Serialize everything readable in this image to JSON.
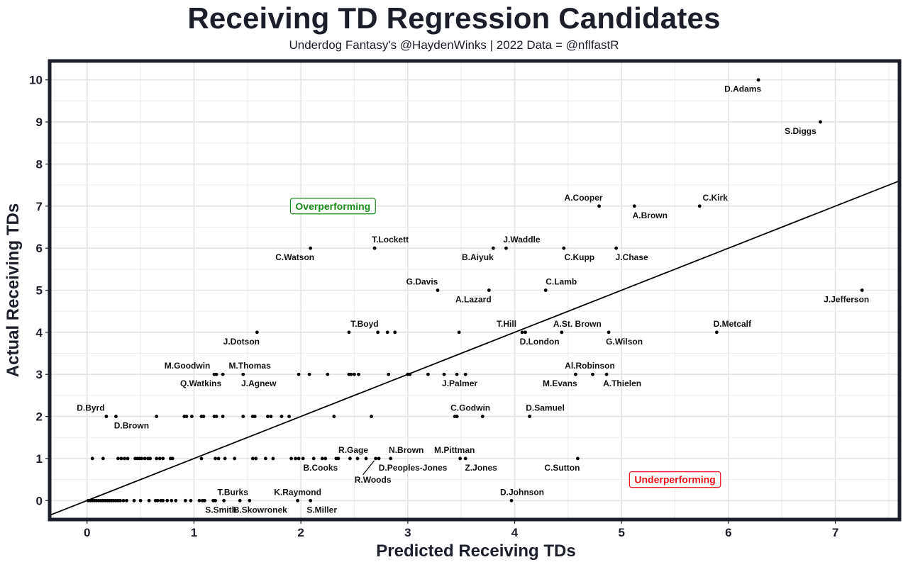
{
  "chart_data": {
    "type": "scatter",
    "title": "Receiving TD Regression Candidates",
    "subtitle": "Underdog Fantasy's @HaydenWinks | 2022 Data = @nflfastR",
    "xlabel": "Predicted Receiving TDs",
    "ylabel": "Actual Receiving TDs",
    "xlim": [
      -0.35,
      7.6
    ],
    "ylim": [
      -0.45,
      10.45
    ],
    "xticks": [
      0,
      1,
      2,
      3,
      4,
      5,
      6,
      7
    ],
    "yticks": [
      0,
      1,
      2,
      3,
      4,
      5,
      6,
      7,
      8,
      9,
      10
    ],
    "grid": true,
    "reference_line": {
      "type": "y=x",
      "label": ""
    },
    "annotations": [
      {
        "text": "Overperforming",
        "x": 2.3,
        "y": 7.0,
        "color": "#1a8a1a"
      },
      {
        "text": "Underperforming",
        "x": 5.5,
        "y": 0.5,
        "color": "#e8111b"
      }
    ],
    "labeled_points": [
      {
        "name": "D.Adams",
        "x": 6.28,
        "y": 10
      },
      {
        "name": "S.Diggs",
        "x": 6.86,
        "y": 9
      },
      {
        "name": "A.Cooper",
        "x": 4.79,
        "y": 7
      },
      {
        "name": "A.Brown",
        "x": 5.12,
        "y": 7
      },
      {
        "name": "C.Kirk",
        "x": 5.73,
        "y": 7
      },
      {
        "name": "C.Watson",
        "x": 2.09,
        "y": 6
      },
      {
        "name": "T.Lockett",
        "x": 2.69,
        "y": 6
      },
      {
        "name": "B.Aiyuk",
        "x": 3.8,
        "y": 6
      },
      {
        "name": "J.Waddle",
        "x": 3.92,
        "y": 6
      },
      {
        "name": "C.Kupp",
        "x": 4.46,
        "y": 6
      },
      {
        "name": "J.Chase",
        "x": 4.95,
        "y": 6
      },
      {
        "name": "G.Davis",
        "x": 3.28,
        "y": 5
      },
      {
        "name": "A.Lazard",
        "x": 3.76,
        "y": 5
      },
      {
        "name": "C.Lamb",
        "x": 4.29,
        "y": 5
      },
      {
        "name": "J.Jefferson",
        "x": 7.25,
        "y": 5
      },
      {
        "name": "J.Dotson",
        "x": 1.59,
        "y": 4
      },
      {
        "name": "T.Boyd",
        "x": 2.45,
        "y": 4
      },
      {
        "name": "T.Hill",
        "x": 4.07,
        "y": 4
      },
      {
        "name": "D.London",
        "x": 4.1,
        "y": 4
      },
      {
        "name": "A.St. Brown",
        "x": 4.44,
        "y": 4
      },
      {
        "name": "G.Wilson",
        "x": 4.88,
        "y": 4
      },
      {
        "name": "D.Metcalf",
        "x": 5.89,
        "y": 4
      },
      {
        "name": "M.Goodwin",
        "x": 1.19,
        "y": 3
      },
      {
        "name": "Q.Watkins",
        "x": 1.21,
        "y": 3
      },
      {
        "name": "M.Thomas",
        "x": 1.27,
        "y": 3
      },
      {
        "name": "J.Agnew",
        "x": 1.46,
        "y": 3
      },
      {
        "name": "J.Palmer",
        "x": 3.34,
        "y": 3
      },
      {
        "name": "M.Evans",
        "x": 4.57,
        "y": 3
      },
      {
        "name": "Al.Robinson",
        "x": 4.73,
        "y": 3
      },
      {
        "name": "A.Thielen",
        "x": 4.86,
        "y": 3
      },
      {
        "name": "D.Byrd",
        "x": 0.18,
        "y": 2
      },
      {
        "name": "D.Brown",
        "x": 0.27,
        "y": 2
      },
      {
        "name": "C.Godwin",
        "x": 3.44,
        "y": 2
      },
      {
        "name": "D.Samuel",
        "x": 4.14,
        "y": 2
      },
      {
        "name": "R.Gage",
        "x": 2.61,
        "y": 1
      },
      {
        "name": "B.Cooks",
        "x": 2.33,
        "y": 1
      },
      {
        "name": "R.Woods",
        "x": 2.7,
        "y": 1
      },
      {
        "name": "N.Brown",
        "x": 2.84,
        "y": 1
      },
      {
        "name": "D.Peoples-Jones",
        "x": 2.73,
        "y": 1
      },
      {
        "name": "M.Pittman",
        "x": 3.49,
        "y": 1
      },
      {
        "name": "Z.Jones",
        "x": 3.54,
        "y": 1
      },
      {
        "name": "C.Sutton",
        "x": 4.59,
        "y": 1
      },
      {
        "name": "T.Burks",
        "x": 1.43,
        "y": 0
      },
      {
        "name": "S.Smith",
        "x": 1.2,
        "y": 0
      },
      {
        "name": "B.Skowronek",
        "x": 1.52,
        "y": 0
      },
      {
        "name": "K.Raymond",
        "x": 1.97,
        "y": 0
      },
      {
        "name": "S.Miller",
        "x": 2.09,
        "y": 0
      },
      {
        "name": "D.Johnson",
        "x": 3.97,
        "y": 0
      }
    ],
    "unlabeled_points": [
      {
        "x": 0.65,
        "y": 2
      },
      {
        "x": 0.91,
        "y": 2
      },
      {
        "x": 0.93,
        "y": 2
      },
      {
        "x": 0.98,
        "y": 2
      },
      {
        "x": 1.07,
        "y": 2
      },
      {
        "x": 1.09,
        "y": 2
      },
      {
        "x": 1.19,
        "y": 2
      },
      {
        "x": 1.21,
        "y": 2
      },
      {
        "x": 1.27,
        "y": 2
      },
      {
        "x": 1.46,
        "y": 2
      },
      {
        "x": 1.55,
        "y": 2
      },
      {
        "x": 1.57,
        "y": 2
      },
      {
        "x": 1.69,
        "y": 2
      },
      {
        "x": 1.72,
        "y": 2
      },
      {
        "x": 1.82,
        "y": 2
      },
      {
        "x": 1.89,
        "y": 2
      },
      {
        "x": 2.31,
        "y": 2
      },
      {
        "x": 2.66,
        "y": 2
      },
      {
        "x": 3.46,
        "y": 2
      },
      {
        "x": 3.7,
        "y": 2
      },
      {
        "x": 1.98,
        "y": 3
      },
      {
        "x": 2.08,
        "y": 3
      },
      {
        "x": 2.25,
        "y": 3
      },
      {
        "x": 2.45,
        "y": 3
      },
      {
        "x": 2.47,
        "y": 3
      },
      {
        "x": 2.5,
        "y": 3
      },
      {
        "x": 2.54,
        "y": 3
      },
      {
        "x": 2.82,
        "y": 3
      },
      {
        "x": 3.0,
        "y": 3
      },
      {
        "x": 3.02,
        "y": 3
      },
      {
        "x": 3.19,
        "y": 3
      },
      {
        "x": 3.46,
        "y": 3
      },
      {
        "x": 3.54,
        "y": 3
      },
      {
        "x": 2.72,
        "y": 4
      },
      {
        "x": 2.81,
        "y": 4
      },
      {
        "x": 2.88,
        "y": 4
      },
      {
        "x": 3.48,
        "y": 4
      },
      {
        "x": 0.05,
        "y": 1
      },
      {
        "x": 0.15,
        "y": 1
      },
      {
        "x": 0.29,
        "y": 1
      },
      {
        "x": 0.32,
        "y": 1
      },
      {
        "x": 0.35,
        "y": 1
      },
      {
        "x": 0.38,
        "y": 1
      },
      {
        "x": 0.45,
        "y": 1
      },
      {
        "x": 0.47,
        "y": 1
      },
      {
        "x": 0.49,
        "y": 1
      },
      {
        "x": 0.51,
        "y": 1
      },
      {
        "x": 0.54,
        "y": 1
      },
      {
        "x": 0.57,
        "y": 1
      },
      {
        "x": 0.59,
        "y": 1
      },
      {
        "x": 0.65,
        "y": 1
      },
      {
        "x": 0.68,
        "y": 1
      },
      {
        "x": 0.71,
        "y": 1
      },
      {
        "x": 0.78,
        "y": 1
      },
      {
        "x": 0.8,
        "y": 1
      },
      {
        "x": 1.07,
        "y": 1
      },
      {
        "x": 1.2,
        "y": 1
      },
      {
        "x": 1.23,
        "y": 1
      },
      {
        "x": 1.29,
        "y": 1
      },
      {
        "x": 1.38,
        "y": 1
      },
      {
        "x": 1.55,
        "y": 1
      },
      {
        "x": 1.58,
        "y": 1
      },
      {
        "x": 1.67,
        "y": 1
      },
      {
        "x": 1.74,
        "y": 1
      },
      {
        "x": 1.91,
        "y": 1
      },
      {
        "x": 1.95,
        "y": 1
      },
      {
        "x": 1.98,
        "y": 1
      },
      {
        "x": 2.02,
        "y": 1
      },
      {
        "x": 2.12,
        "y": 1
      },
      {
        "x": 2.2,
        "y": 1
      },
      {
        "x": 2.23,
        "y": 1
      },
      {
        "x": 2.35,
        "y": 1
      },
      {
        "x": 2.46,
        "y": 1
      },
      {
        "x": 2.53,
        "y": 1
      },
      {
        "x": 0.01,
        "y": 0
      },
      {
        "x": 0.03,
        "y": 0
      },
      {
        "x": 0.05,
        "y": 0
      },
      {
        "x": 0.07,
        "y": 0
      },
      {
        "x": 0.09,
        "y": 0
      },
      {
        "x": 0.11,
        "y": 0
      },
      {
        "x": 0.13,
        "y": 0
      },
      {
        "x": 0.15,
        "y": 0
      },
      {
        "x": 0.17,
        "y": 0
      },
      {
        "x": 0.19,
        "y": 0
      },
      {
        "x": 0.21,
        "y": 0
      },
      {
        "x": 0.23,
        "y": 0
      },
      {
        "x": 0.25,
        "y": 0
      },
      {
        "x": 0.27,
        "y": 0
      },
      {
        "x": 0.29,
        "y": 0
      },
      {
        "x": 0.31,
        "y": 0
      },
      {
        "x": 0.34,
        "y": 0
      },
      {
        "x": 0.37,
        "y": 0
      },
      {
        "x": 0.44,
        "y": 0
      },
      {
        "x": 0.5,
        "y": 0
      },
      {
        "x": 0.58,
        "y": 0
      },
      {
        "x": 0.64,
        "y": 0
      },
      {
        "x": 0.66,
        "y": 0
      },
      {
        "x": 0.69,
        "y": 0
      },
      {
        "x": 0.71,
        "y": 0
      },
      {
        "x": 0.75,
        "y": 0
      },
      {
        "x": 0.79,
        "y": 0
      },
      {
        "x": 0.83,
        "y": 0
      },
      {
        "x": 0.92,
        "y": 0
      },
      {
        "x": 0.97,
        "y": 0
      },
      {
        "x": 1.05,
        "y": 0
      },
      {
        "x": 1.08,
        "y": 0
      },
      {
        "x": 1.1,
        "y": 0
      },
      {
        "x": 1.18,
        "y": 0
      },
      {
        "x": 1.28,
        "y": 0
      }
    ]
  },
  "colors": {
    "frame": "#1c1f2a",
    "text": "#1c1f2a",
    "point": "#000000",
    "overperforming": "#1a8a1a",
    "underperforming": "#e8111b"
  }
}
